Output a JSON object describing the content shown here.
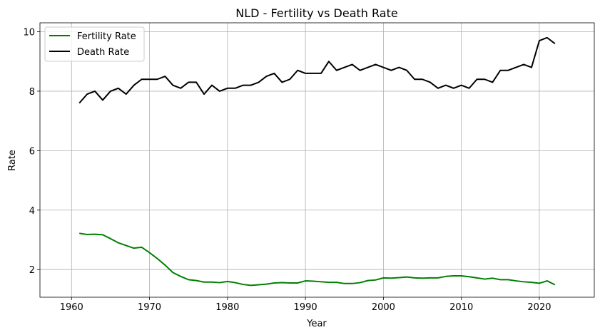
{
  "chart_data": {
    "type": "line",
    "title": "NLD - Fertility vs Death Rate",
    "xlabel": "Year",
    "ylabel": "Rate",
    "xlim": [
      1955.95,
      2027.05
    ],
    "ylim": [
      1.07,
      10.3
    ],
    "x_ticks": [
      1960,
      1970,
      1980,
      1990,
      2000,
      2010,
      2020
    ],
    "y_ticks": [
      2,
      4,
      6,
      8,
      10
    ],
    "grid": true,
    "legend_position": "top-left",
    "x": [
      1961,
      1962,
      1963,
      1964,
      1965,
      1966,
      1967,
      1968,
      1969,
      1970,
      1971,
      1972,
      1973,
      1974,
      1975,
      1976,
      1977,
      1978,
      1979,
      1980,
      1981,
      1982,
      1983,
      1984,
      1985,
      1986,
      1987,
      1988,
      1989,
      1990,
      1991,
      1992,
      1993,
      1994,
      1995,
      1996,
      1997,
      1998,
      1999,
      2000,
      2001,
      2002,
      2003,
      2004,
      2005,
      2006,
      2007,
      2008,
      2009,
      2010,
      2011,
      2012,
      2013,
      2014,
      2015,
      2016,
      2017,
      2018,
      2019,
      2020,
      2021,
      2022
    ],
    "series": [
      {
        "name": "Fertility Rate",
        "color": "#008000",
        "values": [
          3.22,
          3.18,
          3.19,
          3.17,
          3.04,
          2.9,
          2.81,
          2.72,
          2.75,
          2.57,
          2.37,
          2.15,
          1.9,
          1.77,
          1.66,
          1.63,
          1.58,
          1.58,
          1.56,
          1.6,
          1.56,
          1.5,
          1.47,
          1.49,
          1.51,
          1.55,
          1.56,
          1.55,
          1.55,
          1.62,
          1.61,
          1.59,
          1.57,
          1.57,
          1.53,
          1.53,
          1.56,
          1.63,
          1.65,
          1.72,
          1.71,
          1.73,
          1.75,
          1.72,
          1.71,
          1.72,
          1.72,
          1.77,
          1.79,
          1.79,
          1.76,
          1.72,
          1.68,
          1.71,
          1.66,
          1.66,
          1.62,
          1.59,
          1.57,
          1.54,
          1.62,
          1.49
        ]
      },
      {
        "name": "Death Rate",
        "color": "#000000",
        "values": [
          7.6,
          7.9,
          8.0,
          7.7,
          8.0,
          8.1,
          7.9,
          8.2,
          8.4,
          8.4,
          8.4,
          8.5,
          8.2,
          8.1,
          8.3,
          8.3,
          7.9,
          8.2,
          8.0,
          8.1,
          8.1,
          8.2,
          8.2,
          8.3,
          8.5,
          8.6,
          8.3,
          8.4,
          8.7,
          8.6,
          8.6,
          8.6,
          9.0,
          8.7,
          8.8,
          8.9,
          8.7,
          8.8,
          8.9,
          8.8,
          8.7,
          8.8,
          8.7,
          8.4,
          8.4,
          8.3,
          8.1,
          8.2,
          8.1,
          8.2,
          8.1,
          8.4,
          8.4,
          8.3,
          8.7,
          8.7,
          8.8,
          8.9,
          8.8,
          9.7,
          9.8,
          9.6
        ]
      }
    ]
  }
}
